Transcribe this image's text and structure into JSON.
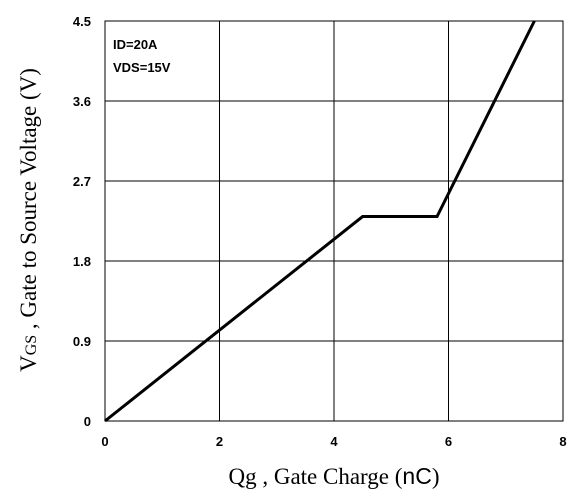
{
  "chart_data": {
    "type": "line",
    "x_ticks": [
      "0",
      "2",
      "4",
      "6",
      "8"
    ],
    "y_ticks": [
      "0",
      "0.9",
      "1.8",
      "2.7",
      "3.6",
      "4.5"
    ],
    "xlim": [
      0,
      8
    ],
    "ylim": [
      0,
      4.5
    ],
    "xlabel": {
      "main": "Qg , Gate Charge (",
      "unit": "nC",
      "close": ")"
    },
    "ylabel": {
      "v": "V",
      "sub": "GS",
      "rest": " , Gate to Source Voltage (V)"
    },
    "annotations": [
      "ID=20A",
      "VDS=15V"
    ],
    "grid": true,
    "series": [
      {
        "color": "#000000",
        "x": [
          0,
          4.5,
          5.8,
          7.5
        ],
        "y": [
          0,
          2.3,
          2.3,
          4.5
        ]
      }
    ]
  }
}
